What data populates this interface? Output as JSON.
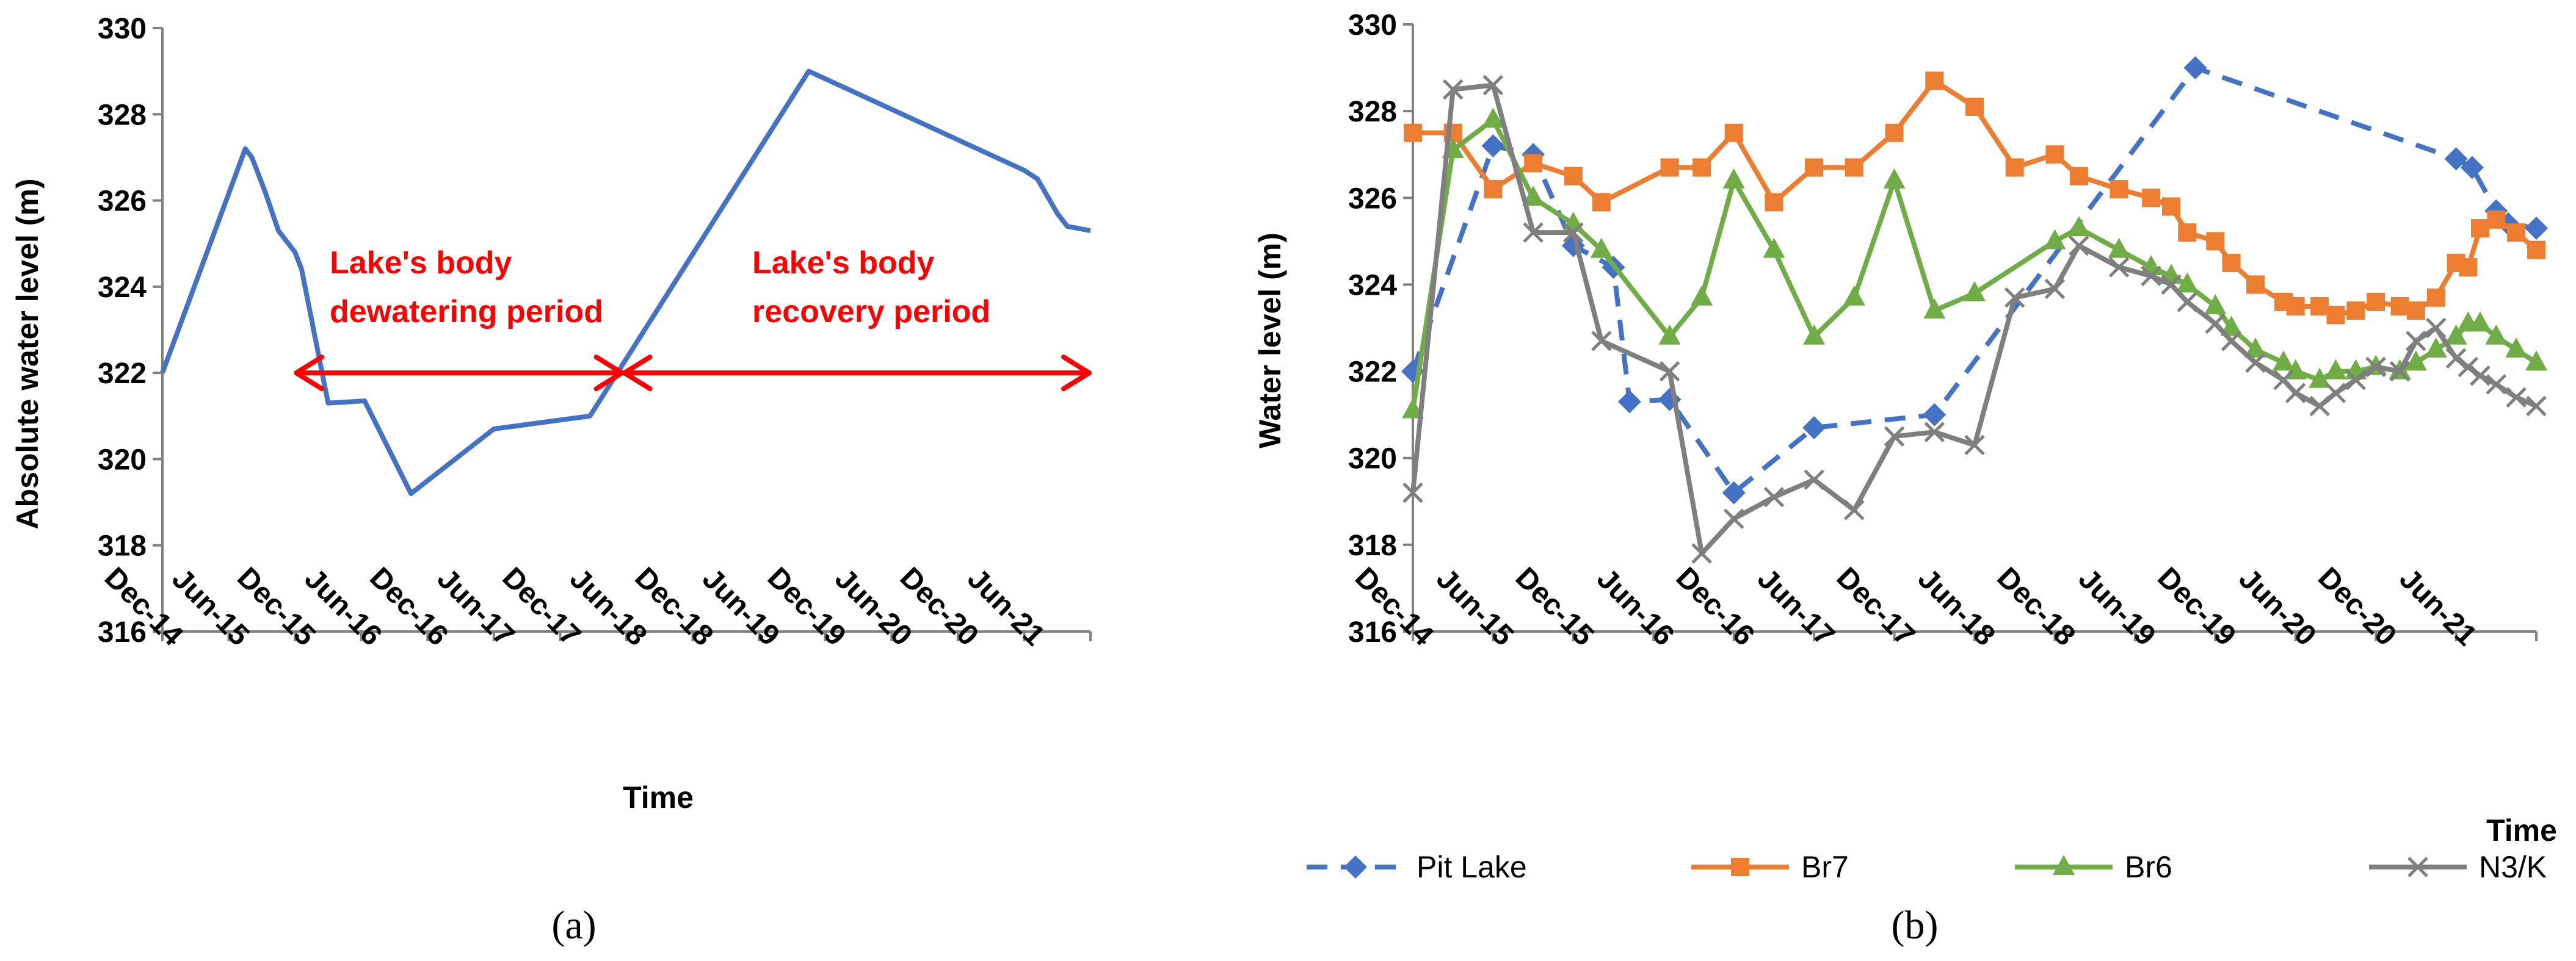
{
  "chart_data": [
    {
      "panel": "(a)",
      "type": "line",
      "ylabel": "Absolute water level (m)",
      "xlabel": "Time",
      "ylim": [
        316,
        330
      ],
      "yticks": [
        "316",
        "318",
        "320",
        "322",
        "324",
        "326",
        "328",
        "330"
      ],
      "xticks": [
        "Dec-14",
        "Jun-15",
        "Dec-15",
        "Jun-16",
        "Dec-16",
        "Jun-17",
        "Dec-17",
        "Jun-18",
        "Dec-18",
        "Jun-19",
        "Dec-19",
        "Jun-20",
        "Dec-20",
        "Jun-21"
      ],
      "xrange": [
        0,
        14
      ],
      "series": [
        {
          "name": "Absolute water level",
          "color": "#4472C4",
          "x": [
            0,
            1.25,
            1.35,
            1.55,
            1.75,
            2.0,
            2.1,
            2.5,
            3.05,
            3.75,
            5.0,
            6.45,
            9.75,
            13.0,
            13.2,
            13.5,
            13.65,
            14.0
          ],
          "y": [
            322.0,
            327.2,
            327.0,
            326.2,
            325.3,
            324.8,
            324.4,
            321.3,
            321.35,
            319.2,
            320.7,
            321.0,
            329.0,
            326.7,
            326.5,
            325.7,
            325.4,
            325.3
          ]
        }
      ],
      "annotations": [
        {
          "line1": "Lake's body",
          "line2": "dewatering period"
        },
        {
          "line1": "Lake's body",
          "line2": "recovery period"
        }
      ],
      "arrows": [
        {
          "label": "dewatering",
          "from_x": 2.0,
          "to_x": 6.95,
          "y": 322.0
        },
        {
          "label": "recovery",
          "from_x": 6.95,
          "to_x": 14.0,
          "y": 322.0
        }
      ]
    },
    {
      "panel": "(b)",
      "type": "line",
      "ylabel": "Water level (m)",
      "xlabel": "Time",
      "ylim": [
        316,
        330
      ],
      "yticks": [
        "316",
        "318",
        "320",
        "322",
        "324",
        "326",
        "328",
        "330"
      ],
      "xticks": [
        "Dec-14",
        "Jun-15",
        "Dec-15",
        "Jun-16",
        "Dec-16",
        "Jun-17",
        "Dec-17",
        "Jun-18",
        "Dec-18",
        "Jun-19",
        "Dec-19",
        "Jun-20",
        "Dec-20",
        "Jun-21"
      ],
      "xrange": [
        0,
        14
      ],
      "series": [
        {
          "name": "Pit Lake",
          "color": "#4472C4",
          "dashed": true,
          "marker": "diamond",
          "x": [
            0,
            1,
            1.5,
            2.0,
            2.5,
            2.7,
            3.2,
            4.0,
            5.0,
            6.5,
            9.75,
            13.0,
            13.2,
            13.5,
            13.65,
            14.0
          ],
          "y": [
            322.0,
            327.2,
            327.0,
            324.9,
            324.4,
            321.3,
            321.35,
            319.2,
            320.7,
            321.0,
            329.0,
            326.9,
            326.7,
            325.7,
            325.4,
            325.3
          ]
        },
        {
          "name": "Br7",
          "color": "#ED7D31",
          "marker": "square",
          "x": [
            0,
            0.5,
            1.0,
            1.5,
            2.0,
            2.35,
            3.2,
            3.6,
            4.0,
            4.5,
            5.0,
            5.5,
            6.0,
            6.5,
            7.0,
            7.5,
            8.0,
            8.3,
            8.8,
            9.2,
            9.45,
            9.65,
            10.0,
            10.2,
            10.5,
            10.85,
            11.0,
            11.3,
            11.5,
            11.75,
            12.0,
            12.3,
            12.5,
            12.75,
            13.0,
            13.15,
            13.3,
            13.5,
            13.75,
            14.0
          ],
          "y": [
            327.5,
            327.5,
            326.2,
            326.8,
            326.5,
            325.9,
            326.7,
            326.7,
            327.5,
            325.9,
            326.7,
            326.7,
            327.5,
            328.7,
            328.1,
            326.7,
            327.0,
            326.5,
            326.2,
            326.0,
            325.8,
            325.2,
            325.0,
            324.5,
            324.0,
            323.6,
            323.5,
            323.5,
            323.3,
            323.4,
            323.6,
            323.5,
            323.4,
            323.7,
            324.5,
            324.4,
            325.3,
            325.5,
            325.2,
            324.8
          ]
        },
        {
          "name": "Br6",
          "color": "#70AD47",
          "marker": "triangle",
          "x": [
            0,
            0.5,
            1.0,
            1.5,
            2.0,
            2.35,
            3.2,
            3.6,
            4.0,
            4.5,
            5.0,
            5.5,
            6.0,
            6.5,
            7.0,
            8.0,
            8.3,
            8.8,
            9.2,
            9.45,
            9.65,
            10.0,
            10.2,
            10.5,
            10.85,
            11.0,
            11.3,
            11.5,
            11.75,
            12.0,
            12.3,
            12.5,
            12.75,
            13.0,
            13.15,
            13.3,
            13.5,
            13.75,
            14.0
          ],
          "y": [
            321.1,
            327.1,
            327.8,
            326.0,
            325.4,
            324.8,
            322.8,
            323.7,
            326.4,
            324.8,
            322.8,
            323.7,
            326.4,
            323.4,
            323.8,
            325.0,
            325.3,
            324.8,
            324.4,
            324.2,
            324.0,
            323.5,
            323.0,
            322.5,
            322.2,
            322.0,
            321.8,
            322.0,
            322.0,
            322.1,
            322.0,
            322.2,
            322.5,
            322.8,
            323.1,
            323.1,
            322.8,
            322.5,
            322.2
          ]
        },
        {
          "name": "N3/K",
          "color": "#7F7F7F",
          "marker": "x",
          "x": [
            0,
            0.5,
            1.0,
            1.5,
            2.0,
            2.35,
            3.2,
            3.6,
            4.0,
            4.5,
            5.0,
            5.5,
            6.0,
            6.5,
            7.0,
            7.5,
            8.0,
            8.3,
            8.8,
            9.2,
            9.45,
            9.65,
            10.0,
            10.2,
            10.5,
            10.85,
            11.0,
            11.3,
            11.5,
            11.75,
            12.0,
            12.3,
            12.5,
            12.75,
            13.0,
            13.15,
            13.3,
            13.5,
            13.75,
            14.0
          ],
          "y": [
            319.2,
            328.5,
            328.6,
            325.2,
            325.2,
            322.7,
            322.0,
            317.8,
            318.6,
            319.1,
            319.5,
            318.8,
            320.5,
            320.6,
            320.3,
            323.7,
            323.9,
            324.9,
            324.4,
            324.2,
            324.0,
            323.6,
            323.1,
            322.7,
            322.2,
            321.8,
            321.5,
            321.2,
            321.5,
            321.8,
            322.1,
            322.0,
            322.7,
            323.0,
            322.3,
            322.1,
            321.9,
            321.7,
            321.4,
            321.2
          ]
        }
      ]
    }
  ],
  "panel_labels": [
    "(a)",
    "(b)"
  ],
  "legend": [
    "Pit Lake",
    "Br7",
    "Br6",
    "N3/K"
  ]
}
